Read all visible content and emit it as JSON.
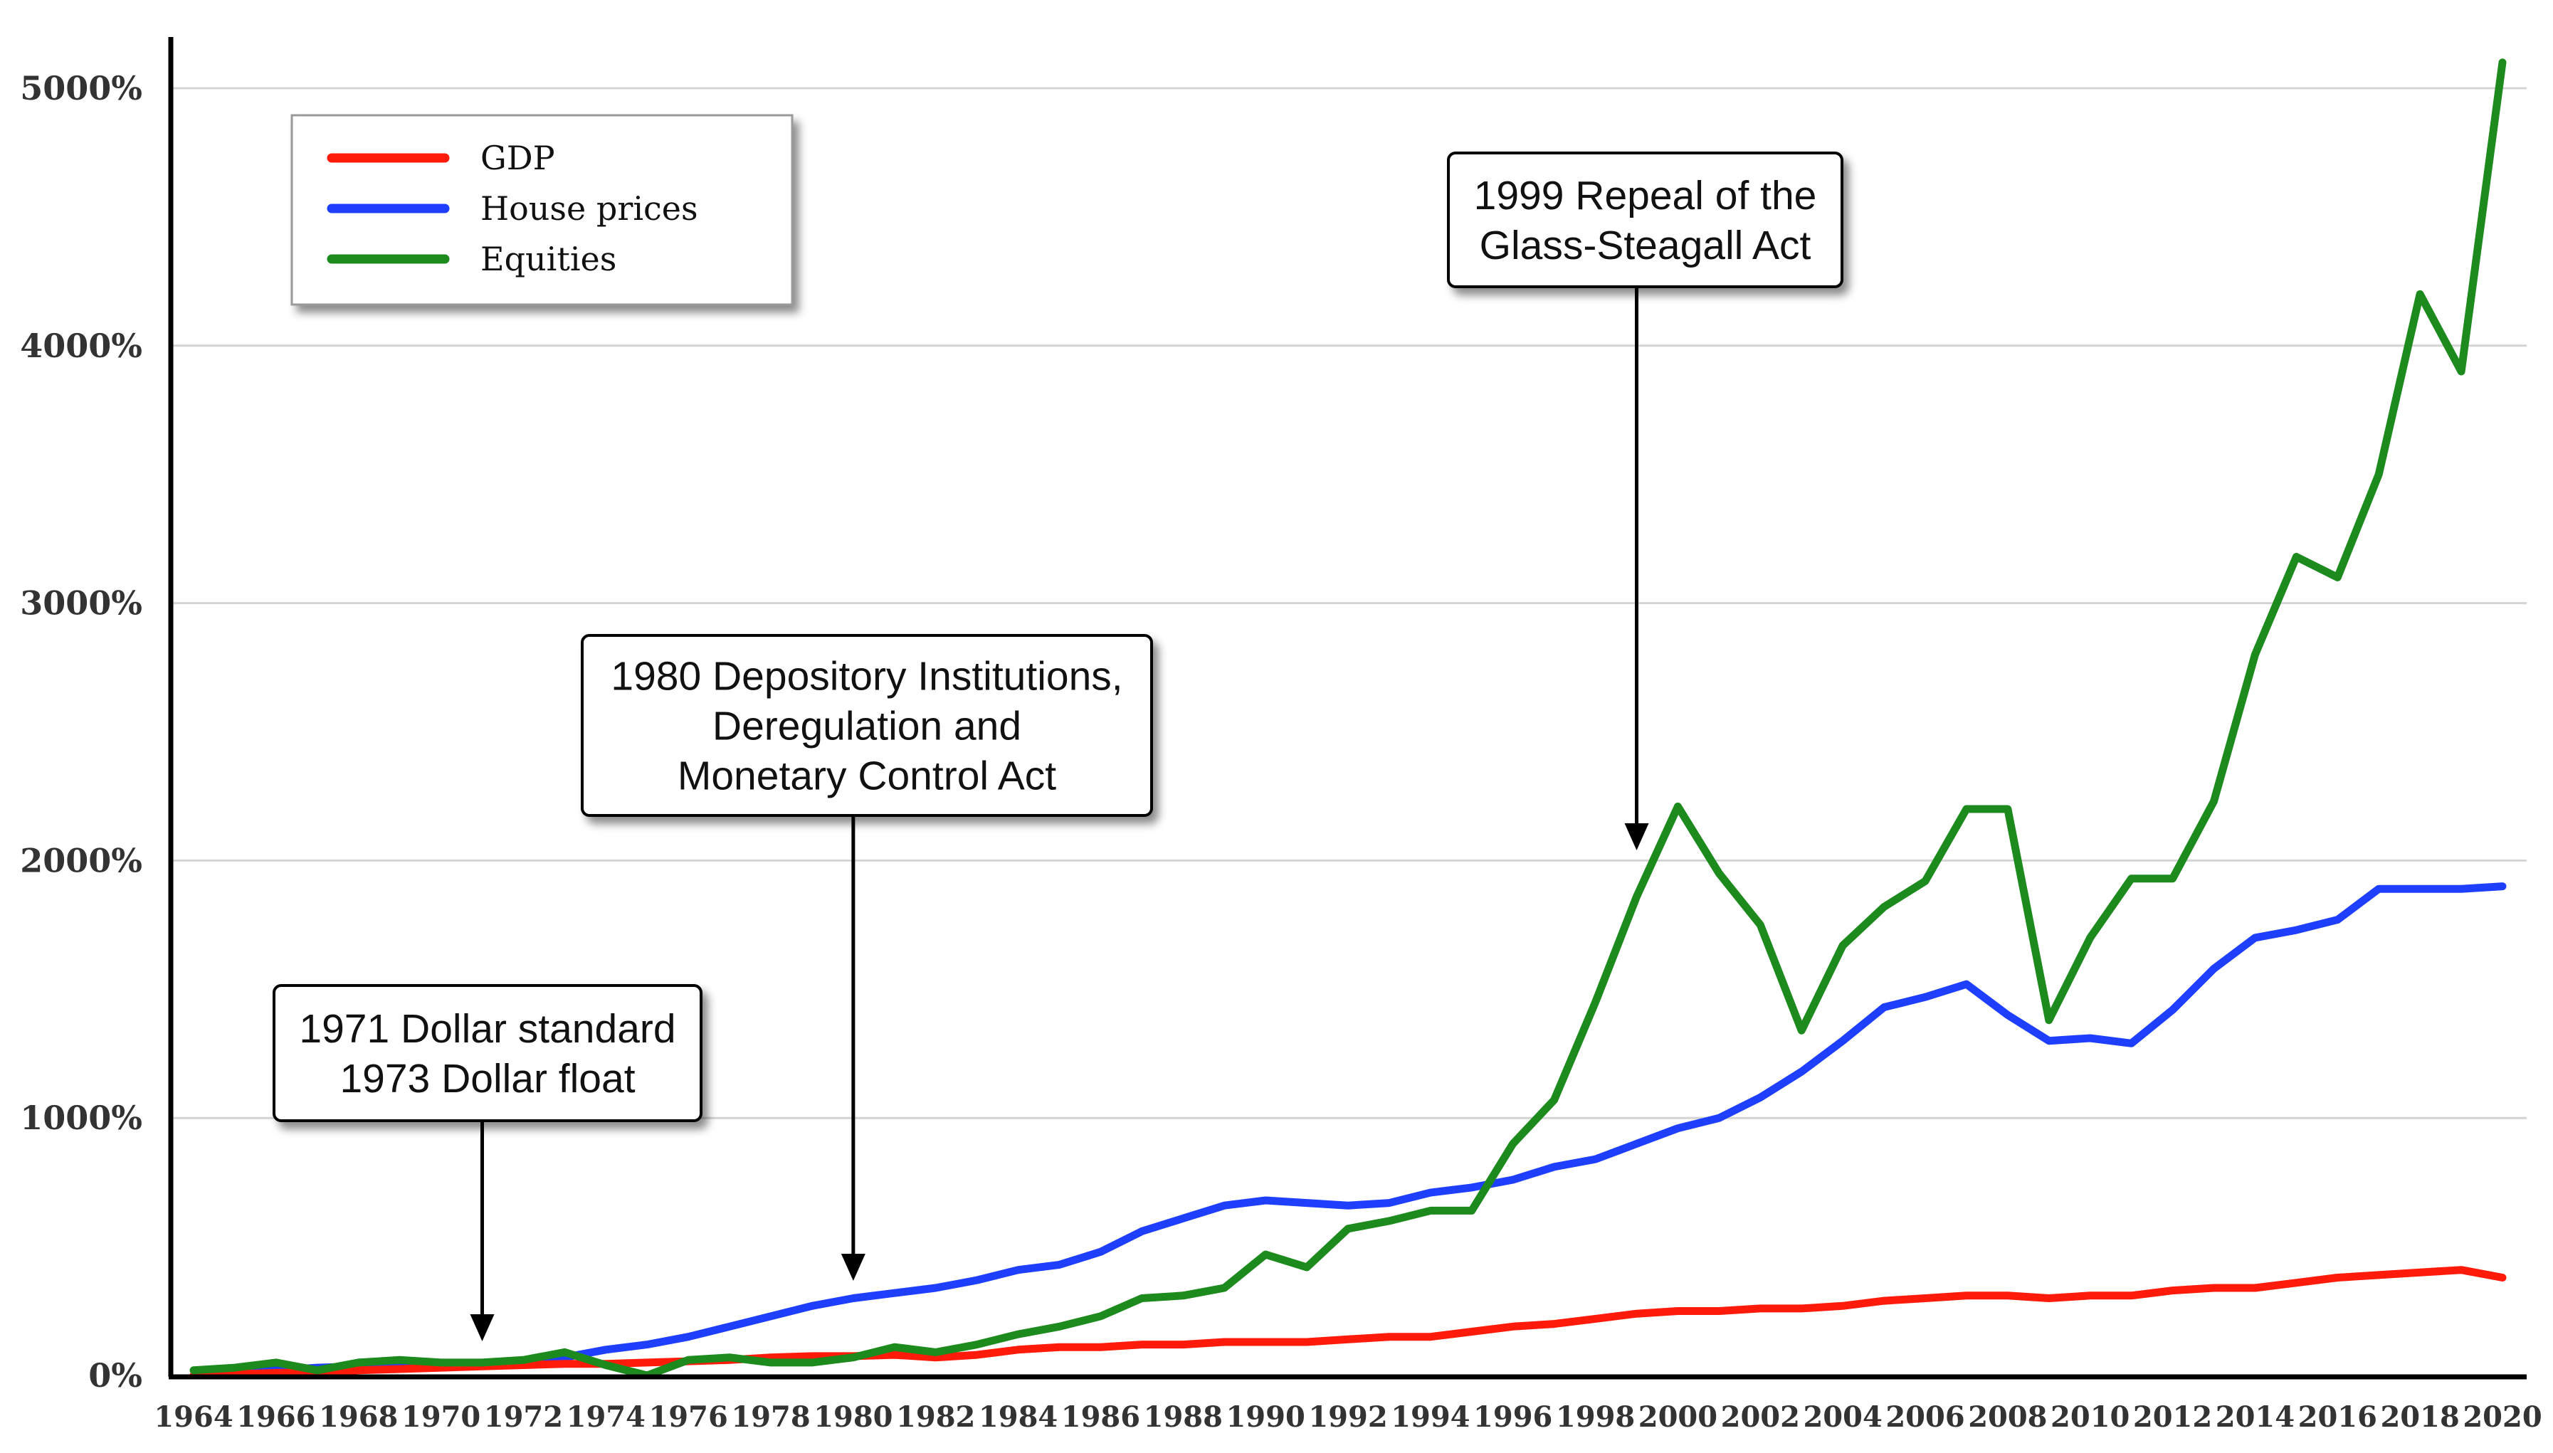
{
  "chart_data": {
    "type": "line",
    "title": "",
    "xlabel": "",
    "ylabel": "",
    "ylim": [
      0,
      5000
    ],
    "xlim": [
      1964,
      2020
    ],
    "grid": "horizontal",
    "legend_position": "top-left",
    "y_ticks": [
      {
        "value": 0,
        "label": "0%"
      },
      {
        "value": 1000,
        "label": "1000%"
      },
      {
        "value": 2000,
        "label": "2000%"
      },
      {
        "value": 3000,
        "label": "3000%"
      },
      {
        "value": 4000,
        "label": "4000%"
      },
      {
        "value": 5000,
        "label": "5000%"
      }
    ],
    "x_tick_labels": [
      "1964",
      "1966",
      "1968",
      "1970",
      "1972",
      "1974",
      "1976",
      "1978",
      "1980",
      "1982",
      "1984",
      "1986",
      "1988",
      "1990",
      "1992",
      "1994",
      "1996",
      "1998",
      "2000",
      "2002",
      "2004",
      "2006",
      "2008",
      "2010",
      "2012",
      "2014",
      "2016",
      "2018",
      "2020"
    ],
    "x": [
      1964,
      1965,
      1966,
      1967,
      1968,
      1969,
      1970,
      1971,
      1972,
      1973,
      1974,
      1975,
      1976,
      1977,
      1978,
      1979,
      1980,
      1981,
      1982,
      1983,
      1984,
      1985,
      1986,
      1987,
      1988,
      1989,
      1990,
      1991,
      1992,
      1993,
      1994,
      1995,
      1996,
      1997,
      1998,
      1999,
      2000,
      2001,
      2002,
      2003,
      2004,
      2005,
      2006,
      2007,
      2008,
      2009,
      2010,
      2011,
      2012,
      2013,
      2014,
      2015,
      2016,
      2017,
      2018,
      2019,
      2020
    ],
    "series": [
      {
        "name": "GDP",
        "color": "#ff1a0a",
        "values": [
          0,
          5,
          10,
          12,
          20,
          25,
          30,
          35,
          40,
          45,
          45,
          50,
          55,
          60,
          70,
          75,
          75,
          80,
          70,
          80,
          100,
          110,
          110,
          120,
          120,
          130,
          130,
          130,
          140,
          150,
          150,
          170,
          190,
          200,
          220,
          240,
          250,
          250,
          260,
          260,
          270,
          290,
          300,
          310,
          310,
          300,
          310,
          310,
          330,
          340,
          340,
          360,
          380,
          390,
          400,
          410,
          380
        ]
      },
      {
        "name": "House prices",
        "color": "#1f3fff",
        "values": [
          0,
          10,
          20,
          30,
          35,
          40,
          40,
          40,
          50,
          70,
          100,
          120,
          150,
          190,
          230,
          270,
          300,
          320,
          340,
          370,
          410,
          430,
          480,
          560,
          610,
          660,
          680,
          670,
          660,
          670,
          710,
          730,
          760,
          810,
          840,
          900,
          960,
          1000,
          1080,
          1180,
          1300,
          1430,
          1470,
          1520,
          1400,
          1300,
          1310,
          1290,
          1420,
          1580,
          1700,
          1730,
          1770,
          1890,
          1890,
          1890,
          1900
        ]
      },
      {
        "name": "Equities",
        "color": "#1c8a1c",
        "values": [
          20,
          30,
          50,
          20,
          50,
          60,
          50,
          50,
          60,
          90,
          40,
          0,
          60,
          70,
          50,
          50,
          70,
          110,
          90,
          120,
          160,
          190,
          230,
          300,
          310,
          340,
          470,
          420,
          570,
          600,
          640,
          640,
          900,
          1070,
          1450,
          1860,
          2210,
          1950,
          1750,
          1340,
          1670,
          1820,
          1920,
          2200,
          2200,
          1380,
          1700,
          1930,
          1930,
          2230,
          2800,
          3180,
          3100,
          3500,
          4200,
          3900,
          5100
        ]
      }
    ],
    "annotations": [
      {
        "lines": [
          "1971 Dollar standard",
          "1973 Dollar float"
        ],
        "x": 1971,
        "y": 0
      },
      {
        "lines": [
          "1980 Depository Institutions,",
          "Deregulation and",
          "Monetary Control Act"
        ],
        "x": 1980,
        "y": 360
      },
      {
        "lines": [
          "1999 Repeal of the",
          "Glass-Steagall Act"
        ],
        "x": 1999,
        "y": 2000
      }
    ]
  }
}
